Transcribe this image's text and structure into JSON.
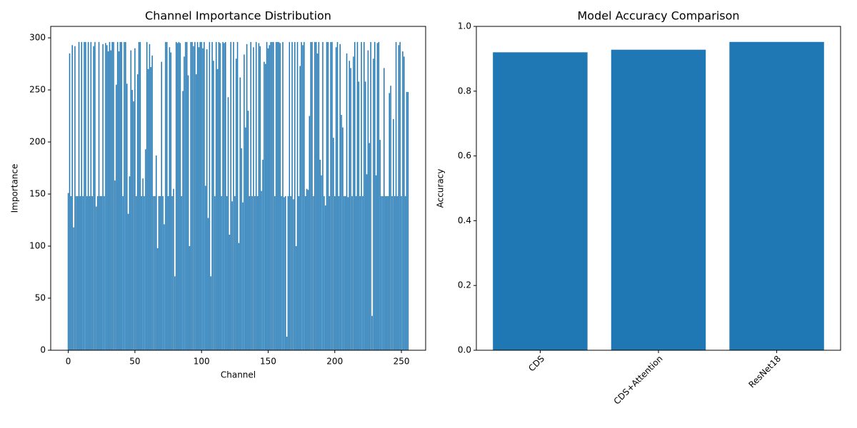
{
  "chart_data": [
    {
      "type": "bar",
      "title": "Channel Importance Distribution",
      "xlabel": "Channel",
      "ylabel": "Importance",
      "color": "#1f77b4",
      "x": [
        0,
        1,
        2,
        3,
        4,
        5,
        6,
        7,
        8,
        9,
        10,
        11,
        12,
        13,
        14,
        15,
        16,
        17,
        18,
        19,
        20,
        21,
        22,
        23,
        24,
        25,
        26,
        27,
        28,
        29,
        30,
        31,
        32,
        33,
        34,
        35,
        36,
        37,
        38,
        39,
        40,
        41,
        42,
        43,
        44,
        45,
        46,
        47,
        48,
        49,
        50,
        51,
        52,
        53,
        54,
        55,
        56,
        57,
        58,
        59,
        60,
        61,
        62,
        63,
        64,
        65,
        66,
        67,
        68,
        69,
        70,
        71,
        72,
        73,
        74,
        75,
        76,
        77,
        78,
        79,
        80,
        81,
        82,
        83,
        84,
        85,
        86,
        87,
        88,
        89,
        90,
        91,
        92,
        93,
        94,
        95,
        96,
        97,
        98,
        99,
        100,
        101,
        102,
        103,
        104,
        105,
        106,
        107,
        108,
        109,
        110,
        111,
        112,
        113,
        114,
        115,
        116,
        117,
        118,
        119,
        120,
        121,
        122,
        123,
        124,
        125,
        126,
        127,
        128,
        129,
        130,
        131,
        132,
        133,
        134,
        135,
        136,
        137,
        138,
        139,
        140,
        141,
        142,
        143,
        144,
        145,
        146,
        147,
        148,
        149,
        150,
        151,
        152,
        153,
        154,
        155,
        156,
        157,
        158,
        159,
        160,
        161,
        162,
        163,
        164,
        165,
        166,
        167,
        168,
        169,
        170,
        171,
        172,
        173,
        174,
        175,
        176,
        177,
        178,
        179,
        180,
        181,
        182,
        183,
        184,
        185,
        186,
        187,
        188,
        189,
        190,
        191,
        192,
        193,
        194,
        195,
        196,
        197,
        198,
        199,
        200,
        201,
        202,
        203,
        204,
        205,
        206,
        207,
        208,
        209,
        210,
        211,
        212,
        213,
        214,
        215,
        216,
        217,
        218,
        219,
        220,
        221,
        222,
        223,
        224,
        225,
        226,
        227,
        228,
        229,
        230,
        231,
        232,
        233,
        234,
        235,
        236,
        237,
        238,
        239,
        240,
        241,
        242,
        243,
        244,
        245,
        246,
        247,
        248,
        249,
        250,
        251,
        252,
        253,
        254,
        255
      ],
      "values": [
        151,
        285,
        148,
        293,
        118,
        292,
        148,
        148,
        296,
        148,
        296,
        148,
        296,
        296,
        148,
        296,
        148,
        296,
        148,
        292,
        296,
        138,
        148,
        296,
        148,
        148,
        294,
        148,
        295,
        293,
        287,
        296,
        288,
        296,
        296,
        163,
        255,
        296,
        287,
        296,
        296,
        148,
        296,
        296,
        256,
        131,
        167,
        288,
        250,
        239,
        290,
        148,
        265,
        296,
        296,
        148,
        165,
        148,
        193,
        296,
        270,
        294,
        272,
        283,
        148,
        148,
        187,
        98,
        148,
        148,
        277,
        148,
        121,
        296,
        296,
        148,
        291,
        286,
        148,
        155,
        71,
        296,
        295,
        296,
        295,
        148,
        249,
        282,
        296,
        296,
        264,
        100,
        296,
        296,
        292,
        296,
        265,
        296,
        291,
        296,
        296,
        290,
        296,
        158,
        289,
        127,
        296,
        71,
        296,
        278,
        148,
        296,
        270,
        296,
        295,
        148,
        296,
        295,
        296,
        148,
        243,
        111,
        296,
        143,
        296,
        148,
        280,
        296,
        103,
        262,
        194,
        142,
        284,
        214,
        294,
        230,
        148,
        296,
        148,
        291,
        148,
        296,
        148,
        295,
        292,
        153,
        183,
        277,
        275,
        296,
        290,
        293,
        296,
        296,
        296,
        148,
        296,
        296,
        296,
        295,
        148,
        296,
        147,
        148,
        13,
        148,
        296,
        148,
        296,
        145,
        296,
        100,
        296,
        148,
        273,
        296,
        293,
        296,
        148,
        155,
        154,
        225,
        296,
        296,
        148,
        296,
        296,
        285,
        296,
        183,
        168,
        296,
        148,
        139,
        296,
        296,
        148,
        296,
        296,
        204,
        148,
        291,
        296,
        148,
        294,
        226,
        214,
        148,
        148,
        285,
        147,
        278,
        271,
        148,
        282,
        296,
        148,
        296,
        258,
        148,
        296,
        148,
        296,
        258,
        169,
        288,
        199,
        296,
        33,
        280,
        296,
        168,
        295,
        296,
        202,
        148,
        148,
        271,
        148,
        148,
        148,
        247,
        254,
        148,
        222,
        148,
        296,
        148,
        293,
        296,
        148,
        287,
        282,
        148,
        248,
        248
      ],
      "xlim": [
        -13.2,
        268.2
      ],
      "xticks": [
        0,
        50,
        100,
        150,
        200,
        250
      ],
      "ylim": [
        0,
        311
      ],
      "yticks": [
        0,
        50,
        100,
        150,
        200,
        250,
        300
      ]
    },
    {
      "type": "bar",
      "title": "Model Accuracy Comparison",
      "ylabel": "Accuracy",
      "color": "#1f77b4",
      "categories": [
        "CDS",
        "CDS+Attention",
        "ResNet18"
      ],
      "values": [
        0.92,
        0.928,
        0.952
      ],
      "ylim": [
        0,
        1
      ],
      "yticks": [
        {
          "value": 0,
          "label": "0.0"
        },
        0.2,
        0.4,
        0.6,
        0.8,
        {
          "value": 1,
          "label": "1.0"
        }
      ]
    }
  ]
}
